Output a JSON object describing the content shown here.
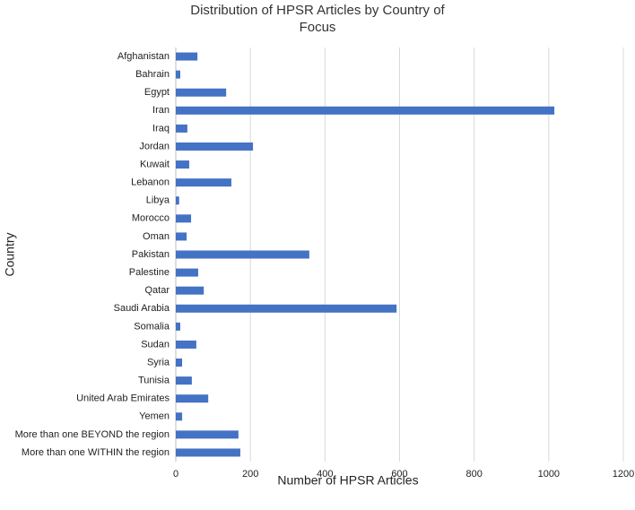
{
  "chart_data": {
    "type": "bar",
    "orientation": "horizontal",
    "title": "Distribution of HPSR Articles by Country of Focus",
    "x_label": "Number of HPSR Articles",
    "y_label": "Country",
    "categories": [
      "Afghanistan",
      "Bahrain",
      "Egypt",
      "Iran",
      "Iraq",
      "Jordan",
      "Kuwait",
      "Lebanon",
      "Libya",
      "Morocco",
      "Oman",
      "Pakistan",
      "Palestine",
      "Qatar",
      "Saudi Arabia",
      "Somalia",
      "Sudan",
      "Syria",
      "Tunisia",
      "United Arab Emirates",
      "Yemen",
      "More than one BEYOND the region",
      "More than one WITHIN the region"
    ],
    "values": [
      58,
      12,
      135,
      1015,
      31,
      207,
      36,
      149,
      9,
      41,
      29,
      358,
      60,
      75,
      592,
      12,
      55,
      17,
      43,
      87,
      17,
      168,
      173
    ],
    "color": "#4472c4",
    "xlim": [
      0,
      1200
    ],
    "xticks": [
      0,
      200,
      400,
      600,
      800,
      1000,
      1200
    ],
    "grid": true
  }
}
